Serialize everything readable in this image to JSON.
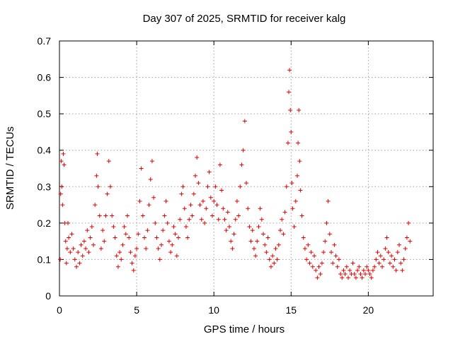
{
  "chart_data": {
    "type": "scatter",
    "title": "Day 307 of 2025, SRMTID for receiver kalg",
    "xlabel": "GPS time / hours",
    "ylabel": "SRMTID / TECUs",
    "xlim": [
      0,
      24.2
    ],
    "ylim": [
      0,
      0.7
    ],
    "xticks": [
      0,
      5,
      10,
      15,
      20
    ],
    "yticks": [
      0,
      0.1,
      0.2,
      0.3,
      0.4,
      0.5,
      0.6,
      0.7
    ],
    "grid": true,
    "marker": "+",
    "color": "#e00000",
    "series": [
      {
        "name": "SRMTID",
        "points": [
          [
            0.05,
            0.1
          ],
          [
            0.08,
            0.28
          ],
          [
            0.12,
            0.37
          ],
          [
            0.15,
            0.3
          ],
          [
            0.2,
            0.25
          ],
          [
            0.25,
            0.39
          ],
          [
            0.3,
            0.36
          ],
          [
            0.35,
            0.2
          ],
          [
            0.4,
            0.15
          ],
          [
            0.45,
            0.09
          ],
          [
            0.5,
            0.13
          ],
          [
            0.55,
            0.2
          ],
          [
            0.6,
            0.16
          ],
          [
            0.7,
            0.12
          ],
          [
            0.8,
            0.17
          ],
          [
            0.9,
            0.13
          ],
          [
            1.0,
            0.1
          ],
          [
            1.1,
            0.08
          ],
          [
            1.2,
            0.12
          ],
          [
            1.3,
            0.09
          ],
          [
            1.4,
            0.14
          ],
          [
            1.5,
            0.11
          ],
          [
            1.6,
            0.15
          ],
          [
            1.7,
            0.13
          ],
          [
            1.8,
            0.18
          ],
          [
            1.9,
            0.12
          ],
          [
            2.0,
            0.16
          ],
          [
            2.1,
            0.19
          ],
          [
            2.2,
            0.14
          ],
          [
            2.3,
            0.25
          ],
          [
            2.4,
            0.33
          ],
          [
            2.45,
            0.39
          ],
          [
            2.5,
            0.3
          ],
          [
            2.6,
            0.22
          ],
          [
            2.7,
            0.13
          ],
          [
            2.8,
            0.18
          ],
          [
            2.9,
            0.15
          ],
          [
            3.0,
            0.22
          ],
          [
            3.1,
            0.28
          ],
          [
            3.2,
            0.37
          ],
          [
            3.3,
            0.3
          ],
          [
            3.4,
            0.22
          ],
          [
            3.5,
            0.19
          ],
          [
            3.6,
            0.16
          ],
          [
            3.7,
            0.11
          ],
          [
            3.8,
            0.08
          ],
          [
            3.9,
            0.12
          ],
          [
            4.0,
            0.1
          ],
          [
            4.1,
            0.14
          ],
          [
            4.2,
            0.19
          ],
          [
            4.3,
            0.17
          ],
          [
            4.4,
            0.22
          ],
          [
            4.5,
            0.16
          ],
          [
            4.6,
            0.12
          ],
          [
            4.7,
            0.09
          ],
          [
            4.8,
            0.07
          ],
          [
            4.9,
            0.11
          ],
          [
            5.0,
            0.13
          ],
          [
            5.1,
            0.17
          ],
          [
            5.2,
            0.26
          ],
          [
            5.3,
            0.35
          ],
          [
            5.4,
            0.22
          ],
          [
            5.5,
            0.16
          ],
          [
            5.6,
            0.13
          ],
          [
            5.7,
            0.18
          ],
          [
            5.8,
            0.25
          ],
          [
            5.9,
            0.32
          ],
          [
            6.0,
            0.37
          ],
          [
            6.1,
            0.27
          ],
          [
            6.2,
            0.2
          ],
          [
            6.3,
            0.16
          ],
          [
            6.4,
            0.13
          ],
          [
            6.5,
            0.1
          ],
          [
            6.6,
            0.14
          ],
          [
            6.7,
            0.18
          ],
          [
            6.8,
            0.22
          ],
          [
            6.9,
            0.26
          ],
          [
            7.0,
            0.2
          ],
          [
            7.1,
            0.15
          ],
          [
            7.2,
            0.12
          ],
          [
            7.3,
            0.14
          ],
          [
            7.4,
            0.19
          ],
          [
            7.5,
            0.17
          ],
          [
            7.6,
            0.11
          ],
          [
            7.7,
            0.16
          ],
          [
            7.8,
            0.21
          ],
          [
            7.9,
            0.28
          ],
          [
            8.0,
            0.3
          ],
          [
            8.1,
            0.24
          ],
          [
            8.2,
            0.19
          ],
          [
            8.3,
            0.16
          ],
          [
            8.4,
            0.21
          ],
          [
            8.5,
            0.25
          ],
          [
            8.6,
            0.22
          ],
          [
            8.7,
            0.28
          ],
          [
            8.8,
            0.33
          ],
          [
            8.9,
            0.38
          ],
          [
            9.0,
            0.31
          ],
          [
            9.1,
            0.25
          ],
          [
            9.2,
            0.21
          ],
          [
            9.3,
            0.26
          ],
          [
            9.4,
            0.2
          ],
          [
            9.5,
            0.24
          ],
          [
            9.6,
            0.3
          ],
          [
            9.7,
            0.34
          ],
          [
            9.8,
            0.27
          ],
          [
            9.9,
            0.22
          ],
          [
            10.0,
            0.26
          ],
          [
            10.1,
            0.3
          ],
          [
            10.2,
            0.25
          ],
          [
            10.3,
            0.21
          ],
          [
            10.4,
            0.36
          ],
          [
            10.5,
            0.29
          ],
          [
            10.6,
            0.24
          ],
          [
            10.7,
            0.21
          ],
          [
            10.8,
            0.18
          ],
          [
            10.9,
            0.23
          ],
          [
            11.0,
            0.19
          ],
          [
            11.1,
            0.15
          ],
          [
            11.2,
            0.13
          ],
          [
            11.3,
            0.17
          ],
          [
            11.4,
            0.21
          ],
          [
            11.5,
            0.26
          ],
          [
            11.6,
            0.22
          ],
          [
            11.7,
            0.3
          ],
          [
            11.8,
            0.36
          ],
          [
            11.9,
            0.4
          ],
          [
            12.0,
            0.48
          ],
          [
            12.1,
            0.31
          ],
          [
            12.2,
            0.24
          ],
          [
            12.3,
            0.19
          ],
          [
            12.4,
            0.15
          ],
          [
            12.5,
            0.18
          ],
          [
            12.6,
            0.13
          ],
          [
            12.7,
            0.11
          ],
          [
            12.8,
            0.15
          ],
          [
            12.9,
            0.19
          ],
          [
            13.0,
            0.24
          ],
          [
            13.1,
            0.21
          ],
          [
            13.2,
            0.17
          ],
          [
            13.3,
            0.14
          ],
          [
            13.4,
            0.12
          ],
          [
            13.5,
            0.16
          ],
          [
            13.6,
            0.1
          ],
          [
            13.7,
            0.08
          ],
          [
            13.8,
            0.11
          ],
          [
            13.9,
            0.09
          ],
          [
            14.0,
            0.13
          ],
          [
            14.1,
            0.1
          ],
          [
            14.2,
            0.14
          ],
          [
            14.3,
            0.18
          ],
          [
            14.4,
            0.21
          ],
          [
            14.5,
            0.17
          ],
          [
            14.6,
            0.23
          ],
          [
            14.7,
            0.3
          ],
          [
            14.8,
            0.42
          ],
          [
            14.85,
            0.56
          ],
          [
            14.9,
            0.62
          ],
          [
            14.95,
            0.51
          ],
          [
            15.0,
            0.45
          ],
          [
            15.05,
            0.31
          ],
          [
            15.1,
            0.24
          ],
          [
            15.2,
            0.19
          ],
          [
            15.3,
            0.26
          ],
          [
            15.4,
            0.33
          ],
          [
            15.45,
            0.42
          ],
          [
            15.5,
            0.51
          ],
          [
            15.55,
            0.37
          ],
          [
            15.6,
            0.29
          ],
          [
            15.7,
            0.22
          ],
          [
            15.8,
            0.16
          ],
          [
            15.9,
            0.13
          ],
          [
            16.0,
            0.1
          ],
          [
            16.1,
            0.14
          ],
          [
            16.2,
            0.09
          ],
          [
            16.3,
            0.12
          ],
          [
            16.4,
            0.08
          ],
          [
            16.5,
            0.11
          ],
          [
            16.6,
            0.07
          ],
          [
            16.7,
            0.05
          ],
          [
            16.8,
            0.08
          ],
          [
            16.9,
            0.06
          ],
          [
            17.0,
            0.09
          ],
          [
            17.1,
            0.12
          ],
          [
            17.2,
            0.15
          ],
          [
            17.3,
            0.2
          ],
          [
            17.4,
            0.26
          ],
          [
            17.5,
            0.17
          ],
          [
            17.6,
            0.12
          ],
          [
            17.7,
            0.09
          ],
          [
            17.8,
            0.14
          ],
          [
            17.9,
            0.11
          ],
          [
            18.0,
            0.08
          ],
          [
            18.1,
            0.1
          ],
          [
            18.2,
            0.06
          ],
          [
            18.3,
            0.05
          ],
          [
            18.4,
            0.07
          ],
          [
            18.5,
            0.06
          ],
          [
            18.6,
            0.08
          ],
          [
            18.7,
            0.05
          ],
          [
            18.8,
            0.07
          ],
          [
            18.9,
            0.06
          ],
          [
            19.0,
            0.09
          ],
          [
            19.1,
            0.06
          ],
          [
            19.2,
            0.05
          ],
          [
            19.3,
            0.07
          ],
          [
            19.4,
            0.08
          ],
          [
            19.5,
            0.06
          ],
          [
            19.6,
            0.05
          ],
          [
            19.7,
            0.07
          ],
          [
            19.8,
            0.06
          ],
          [
            19.9,
            0.08
          ],
          [
            20.0,
            0.07
          ],
          [
            20.1,
            0.06
          ],
          [
            20.2,
            0.05
          ],
          [
            20.3,
            0.07
          ],
          [
            20.4,
            0.08
          ],
          [
            20.5,
            0.1
          ],
          [
            20.6,
            0.12
          ],
          [
            20.7,
            0.09
          ],
          [
            20.8,
            0.11
          ],
          [
            20.9,
            0.08
          ],
          [
            21.0,
            0.1
          ],
          [
            21.1,
            0.13
          ],
          [
            21.2,
            0.16
          ],
          [
            21.3,
            0.12
          ],
          [
            21.4,
            0.09
          ],
          [
            21.5,
            0.11
          ],
          [
            21.6,
            0.08
          ],
          [
            21.7,
            0.1
          ],
          [
            21.8,
            0.07
          ],
          [
            21.9,
            0.12
          ],
          [
            22.0,
            0.14
          ],
          [
            22.1,
            0.09
          ],
          [
            22.2,
            0.07
          ],
          [
            22.3,
            0.1
          ],
          [
            22.4,
            0.13
          ],
          [
            22.5,
            0.16
          ],
          [
            22.6,
            0.2
          ],
          [
            22.7,
            0.15
          ]
        ]
      }
    ]
  }
}
